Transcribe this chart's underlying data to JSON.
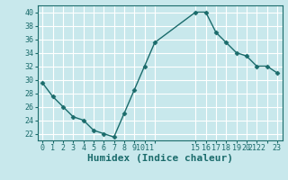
{
  "x": [
    0,
    1,
    2,
    3,
    4,
    5,
    6,
    7,
    8,
    9,
    10,
    11,
    15,
    16,
    17,
    18,
    19,
    20,
    21,
    22,
    23
  ],
  "y": [
    29.5,
    27.5,
    26,
    24.5,
    24,
    22.5,
    22,
    21.5,
    25,
    28.5,
    32,
    35.5,
    40,
    40,
    37,
    35.5,
    34,
    33.5,
    32,
    32,
    31
  ],
  "line_color": "#1a6b6b",
  "marker": "D",
  "marker_size": 2.5,
  "background_color": "#c8e8ec",
  "grid_color": "#ffffff",
  "xlabel": "Humidex (Indice chaleur)",
  "xlim": [
    -0.5,
    23.5
  ],
  "ylim": [
    21,
    41
  ],
  "yticks": [
    22,
    24,
    26,
    28,
    30,
    32,
    34,
    36,
    38,
    40
  ],
  "x_tick_positions": [
    0,
    1,
    2,
    3,
    4,
    5,
    6,
    7,
    8,
    9,
    10,
    11,
    15,
    16,
    17,
    18,
    19,
    20,
    21,
    22,
    23
  ],
  "x_tick_labels": [
    "0",
    "1",
    "2",
    "3",
    "4",
    "5",
    "6",
    "7",
    "8",
    "9",
    "1011",
    "",
    "15",
    "16",
    "17",
    "18",
    "19",
    "20",
    "2122",
    "",
    "23"
  ],
  "xlabel_fontsize": 8,
  "tick_fontsize": 6,
  "ytick_fontsize": 6
}
